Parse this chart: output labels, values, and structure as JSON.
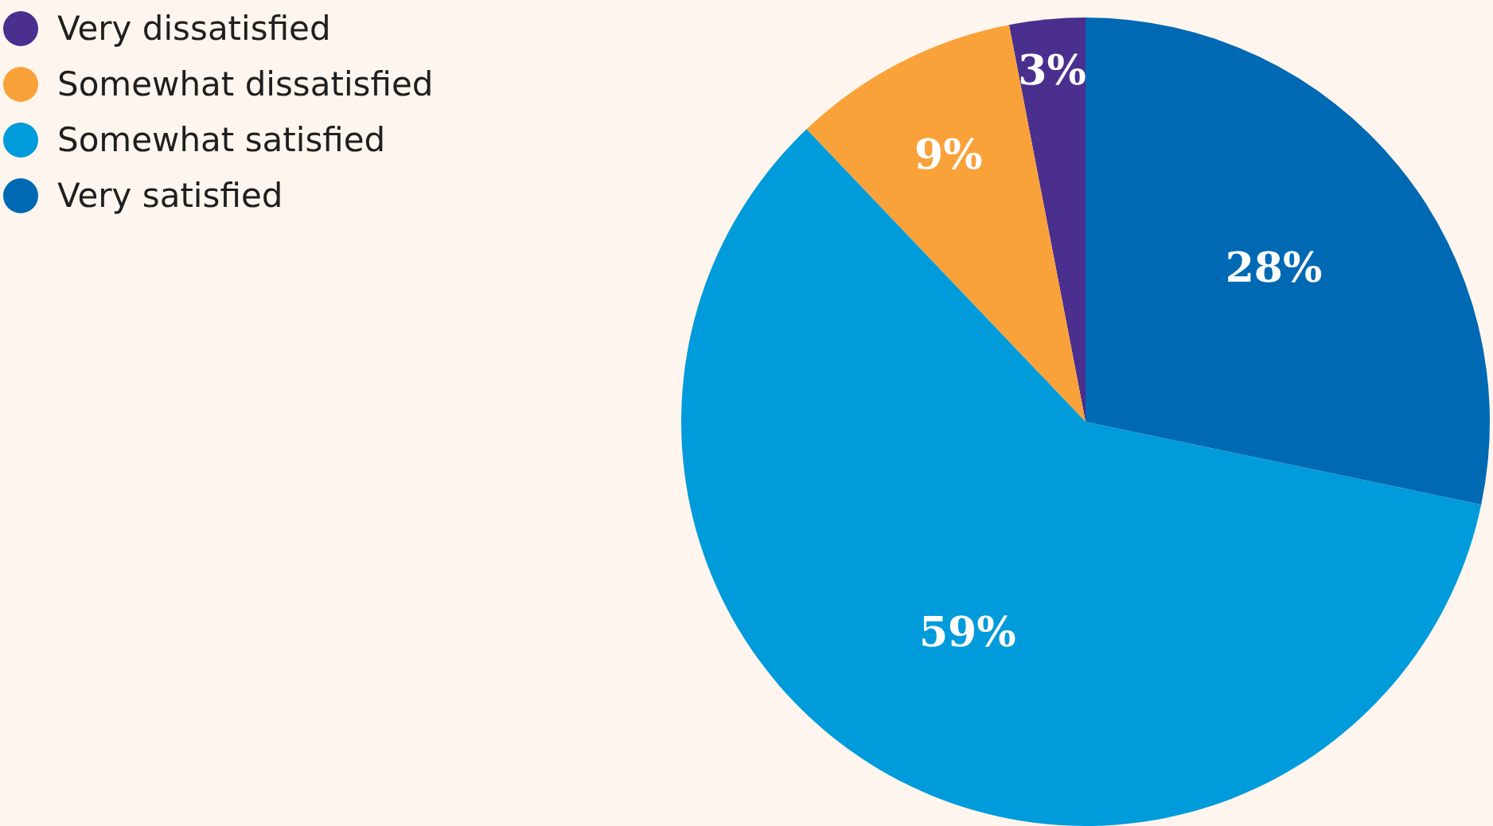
{
  "chart_data": {
    "type": "pie",
    "categories": [
      "Very dissatisfied",
      "Somewhat dissatisfied",
      "Somewhat satisfied",
      "Very satisfied"
    ],
    "values": [
      3,
      9,
      59,
      28
    ],
    "colors": [
      "#4a2f8f",
      "#f9a23a",
      "#009bdb",
      "#0069b3"
    ],
    "value_labels": [
      "3%",
      "9%",
      "59%",
      "28%"
    ],
    "legend": "top left"
  }
}
